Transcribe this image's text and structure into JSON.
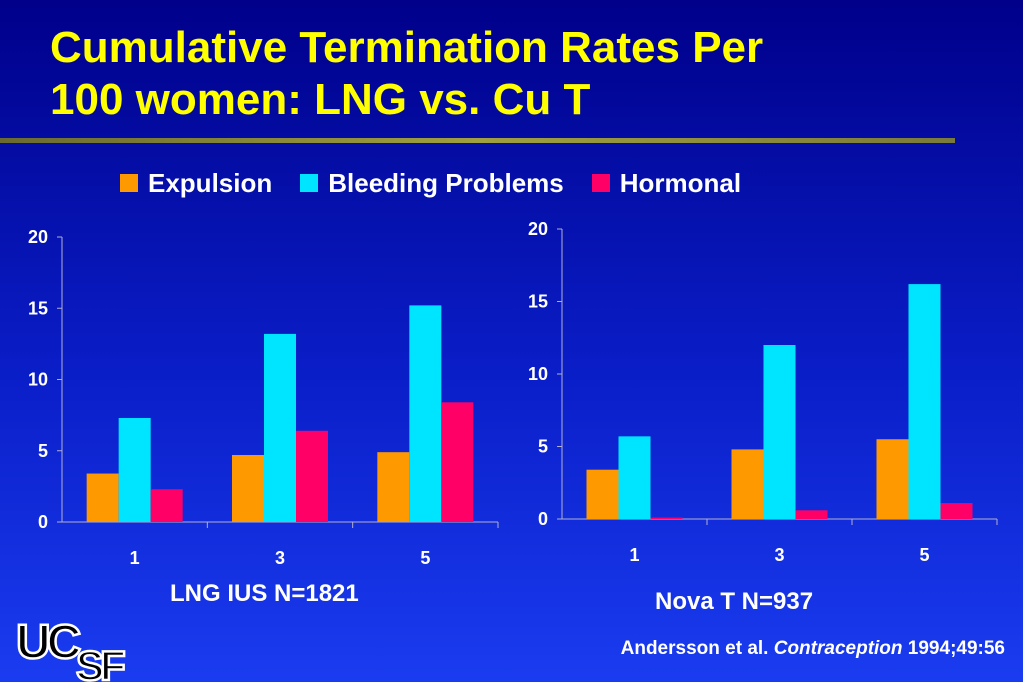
{
  "title_line1": "Cumulative Termination Rates Per",
  "title_line2": "100 women: LNG vs. Cu T",
  "legend": [
    {
      "label": "Expulsion",
      "color": "#ff9900"
    },
    {
      "label": "Bleeding Problems",
      "color": "#00e5ff"
    },
    {
      "label": "Hormonal",
      "color": "#ff0066"
    }
  ],
  "chart_data": [
    {
      "type": "bar",
      "caption": "LNG IUS N=1821",
      "categories": [
        "1",
        "3",
        "5"
      ],
      "ylim": [
        0,
        20
      ],
      "yticks": [
        0,
        5,
        10,
        15,
        20
      ],
      "series": [
        {
          "name": "Expulsion",
          "values": [
            3.4,
            4.7,
            4.9
          ]
        },
        {
          "name": "Bleeding Problems",
          "values": [
            7.3,
            13.2,
            15.2
          ]
        },
        {
          "name": "Hormonal",
          "values": [
            2.3,
            6.4,
            8.4
          ]
        }
      ]
    },
    {
      "type": "bar",
      "caption": "Nova T N=937",
      "categories": [
        "1",
        "3",
        "5"
      ],
      "ylim": [
        0,
        20
      ],
      "yticks": [
        0,
        5,
        10,
        15,
        20
      ],
      "series": [
        {
          "name": "Expulsion",
          "values": [
            3.4,
            4.8,
            5.5
          ]
        },
        {
          "name": "Bleeding Problems",
          "values": [
            5.7,
            12.0,
            16.2
          ]
        },
        {
          "name": "Hormonal",
          "values": [
            0.1,
            0.6,
            1.1
          ]
        }
      ]
    }
  ],
  "citation": {
    "authors": "Andersson et al.",
    "journal": "Contraception",
    "ref": "1994;49:56"
  },
  "logo_text": "UCSF"
}
